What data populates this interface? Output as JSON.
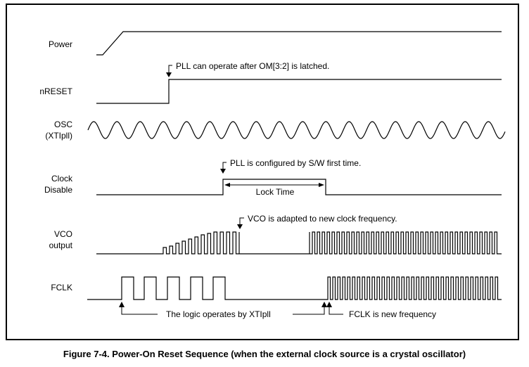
{
  "signals": [
    {
      "id": "power",
      "label_lines": [
        "Power"
      ]
    },
    {
      "id": "nreset",
      "label_lines": [
        "nRESET"
      ]
    },
    {
      "id": "osc",
      "label_lines": [
        "OSC",
        "(XTIpll)"
      ]
    },
    {
      "id": "clock_disable",
      "label_lines": [
        "Clock",
        "Disable"
      ]
    },
    {
      "id": "vco",
      "label_lines": [
        "VCO",
        "output"
      ]
    },
    {
      "id": "fclk",
      "label_lines": [
        "FCLK"
      ]
    }
  ],
  "annotations": {
    "pll_operate": "PLL can operate after OM[3:2] is latched.",
    "pll_configured": "PLL is configured by S/W first time.",
    "lock_time": "Lock Time",
    "vco_adapted": "VCO is adapted to new clock frequency.",
    "logic_xtipll": "The logic operates by XTIpll",
    "fclk_new": "FCLK is new frequency"
  },
  "caption": "Figure 7-4. Power-On Reset Sequence (when the external clock source is a crystal oscillator)"
}
